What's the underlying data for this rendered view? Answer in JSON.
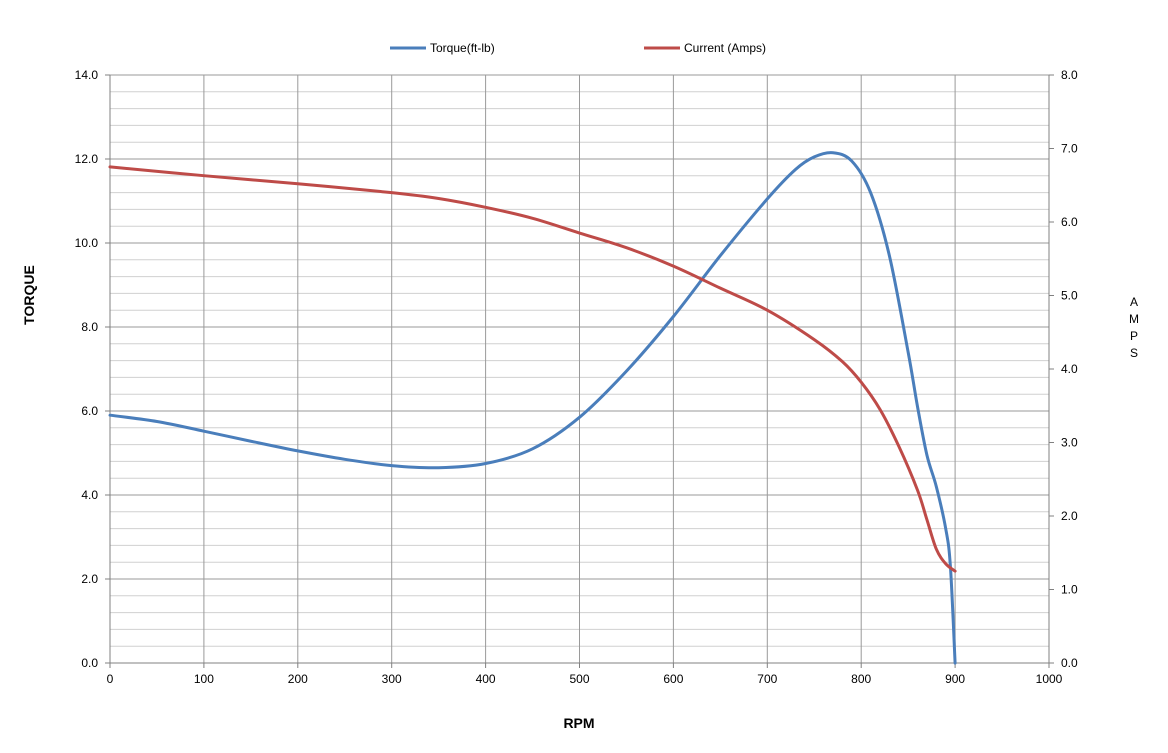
{
  "chart_data": {
    "type": "line",
    "title": "",
    "xlabel": "RPM",
    "ylabel_left": "TORQUE",
    "ylabel_right": "AMPS",
    "xlim": [
      0,
      1000
    ],
    "ylim_left": [
      0,
      14
    ],
    "ylim_right": [
      0,
      8
    ],
    "x_ticks": [
      "0",
      "100",
      "200",
      "300",
      "400",
      "500",
      "600",
      "700",
      "800",
      "900",
      "1000"
    ],
    "y_left_ticks": [
      "0.0",
      "2.0",
      "4.0",
      "6.0",
      "8.0",
      "10.0",
      "12.0",
      "14.0"
    ],
    "y_right_ticks": [
      "0.0",
      "1.0",
      "2.0",
      "3.0",
      "4.0",
      "5.0",
      "6.0",
      "7.0",
      "8.0"
    ],
    "grid": true,
    "legend_position": "top",
    "series": [
      {
        "name": "Torque(ft-lb)",
        "axis": "left",
        "color": "#4a7ebb",
        "x": [
          0,
          50,
          100,
          150,
          200,
          250,
          300,
          350,
          400,
          450,
          500,
          550,
          600,
          650,
          700,
          730,
          750,
          770,
          790,
          810,
          830,
          850,
          860,
          870,
          880,
          890,
          895,
          900
        ],
        "y": [
          5.9,
          5.75,
          5.52,
          5.28,
          5.05,
          4.85,
          4.7,
          4.65,
          4.75,
          5.1,
          5.85,
          6.95,
          8.25,
          9.7,
          11.05,
          11.75,
          12.05,
          12.15,
          11.95,
          11.2,
          9.7,
          7.4,
          6.1,
          4.95,
          4.2,
          3.2,
          2.3,
          0.0
        ]
      },
      {
        "name": "Current (Amps)",
        "axis": "right",
        "color": "#be4b48",
        "x": [
          0,
          100,
          200,
          300,
          350,
          400,
          450,
          500,
          550,
          600,
          650,
          700,
          750,
          780,
          800,
          820,
          840,
          860,
          870,
          880,
          890,
          900
        ],
        "y": [
          6.75,
          6.63,
          6.52,
          6.4,
          6.32,
          6.2,
          6.05,
          5.85,
          5.65,
          5.4,
          5.1,
          4.8,
          4.4,
          4.1,
          3.82,
          3.45,
          2.95,
          2.35,
          1.95,
          1.55,
          1.35,
          1.25
        ]
      }
    ]
  }
}
